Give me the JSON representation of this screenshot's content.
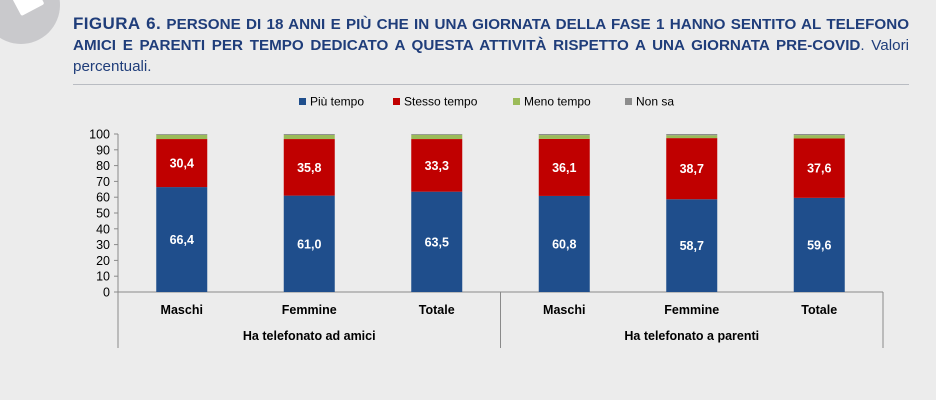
{
  "header": {
    "figure_label": "FIGURA 6.",
    "title": " PERSONE DI 18 ANNI E PIÙ CHE IN UNA GIORNATA DELLA FASE 1 HANNO SENTITO AL TELEFONO AMICI E PARENTI PER TEMPO DEDICATO A QUESTA ATTIVITÀ RISPETTO A UNA GIORNATA PRE-COVID",
    "subtitle": ". Valori percentuali."
  },
  "colors": {
    "piu_tempo": "#1f4e8c",
    "stesso_tempo": "#c00000",
    "meno_tempo": "#9bbb59",
    "non_sa": "#8c8c8c"
  },
  "chart_data": {
    "type": "bar",
    "stacked": true,
    "ylim": [
      0,
      100
    ],
    "yticks": [
      0,
      10,
      20,
      30,
      40,
      50,
      60,
      70,
      80,
      90,
      100
    ],
    "grid": false,
    "legend_position": "top",
    "categories": [
      "Maschi",
      "Femmine",
      "Totale",
      "Maschi",
      "Femmine",
      "Totale"
    ],
    "groups": [
      {
        "label": "Ha telefonato ad amici",
        "span": [
          0,
          2
        ]
      },
      {
        "label": "Ha telefonato a parenti",
        "span": [
          3,
          5
        ]
      }
    ],
    "series": [
      {
        "name": "Più tempo",
        "color": "#1f4e8c",
        "values": [
          66.4,
          61.0,
          63.5,
          60.8,
          58.7,
          59.6
        ],
        "labels": [
          "66,4",
          "61,0",
          "63,5",
          "60,8",
          "58,7",
          "59,6"
        ]
      },
      {
        "name": "Stesso tempo",
        "color": "#c00000",
        "values": [
          30.4,
          35.8,
          33.3,
          36.1,
          38.7,
          37.6
        ],
        "labels": [
          "30,4",
          "35,8",
          "33,3",
          "36,1",
          "38,7",
          "37,6"
        ]
      },
      {
        "name": "Meno tempo",
        "color": "#9bbb59",
        "values": [
          2.7,
          2.6,
          2.7,
          2.4,
          1.8,
          2.1
        ]
      },
      {
        "name": "Non sa",
        "color": "#8c8c8c",
        "values": [
          0.5,
          0.6,
          0.5,
          0.7,
          0.8,
          0.7
        ]
      }
    ]
  }
}
